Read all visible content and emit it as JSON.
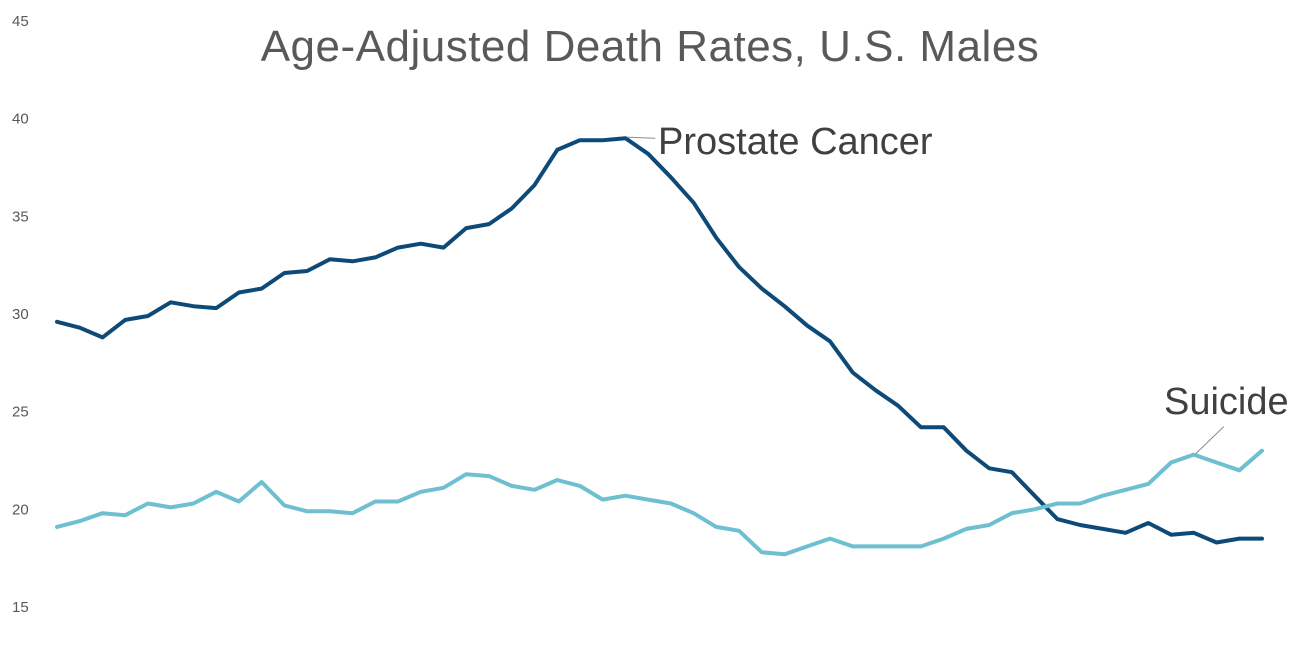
{
  "chart_data": {
    "type": "line",
    "title": "Age-Adjusted Death Rates, U.S. Males",
    "xlabel": "",
    "ylabel": "",
    "ylim": [
      15,
      45
    ],
    "yticks": [
      15,
      20,
      25,
      30,
      35,
      40,
      45
    ],
    "grid": false,
    "legend": "none (direct labels)",
    "series": [
      {
        "name": "Prostate Cancer",
        "color": "#0d4a78",
        "values": [
          29.6,
          29.3,
          28.8,
          29.7,
          29.9,
          30.6,
          30.4,
          30.3,
          31.1,
          31.3,
          32.1,
          32.2,
          32.8,
          32.7,
          32.9,
          33.4,
          33.6,
          33.4,
          34.4,
          34.6,
          35.4,
          36.6,
          38.4,
          38.9,
          38.9,
          39.0,
          38.2,
          37.0,
          35.7,
          33.9,
          32.4,
          31.3,
          30.4,
          29.4,
          28.6,
          27.0,
          26.1,
          25.3,
          24.2,
          24.2,
          23.0,
          22.1,
          21.9,
          20.7,
          19.5,
          19.2,
          19.0,
          18.8,
          19.3,
          18.7,
          18.8,
          18.3,
          18.5,
          18.5
        ]
      },
      {
        "name": "Suicide",
        "color": "#6ebfd0",
        "values": [
          19.1,
          19.4,
          19.8,
          19.7,
          20.3,
          20.1,
          20.3,
          20.9,
          20.4,
          21.4,
          20.2,
          19.9,
          19.9,
          19.8,
          20.4,
          20.4,
          20.9,
          21.1,
          21.8,
          21.7,
          21.2,
          21.0,
          21.5,
          21.2,
          20.5,
          20.7,
          20.5,
          20.3,
          19.8,
          19.1,
          18.9,
          17.8,
          17.7,
          18.1,
          18.5,
          18.1,
          18.1,
          18.1,
          18.1,
          18.5,
          19.0,
          19.2,
          19.8,
          20.0,
          20.3,
          20.3,
          20.7,
          21.0,
          21.3,
          22.4,
          22.8,
          22.4,
          22.0,
          23.0
        ]
      }
    ],
    "annotations": [
      {
        "text": "Prostate Cancer",
        "series": "Prostate Cancer",
        "point_index": 25
      },
      {
        "text": "Suicide",
        "series": "Suicide",
        "point_index": 50
      }
    ]
  }
}
